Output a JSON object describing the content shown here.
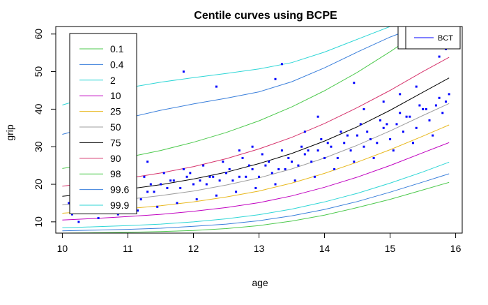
{
  "chart_data": {
    "type": "scatter",
    "title": "Centile curves using BCPE",
    "xlabel": "age",
    "ylabel": "grip",
    "xlim": [
      9.9,
      16.1
    ],
    "ylim": [
      7,
      62
    ],
    "x_ticks": [
      10,
      11,
      12,
      13,
      14,
      15,
      16
    ],
    "y_ticks": [
      10,
      20,
      30,
      40,
      50,
      60
    ],
    "legend_title": "",
    "legend_position": "top-left",
    "legend_entries": [
      "0.1",
      "0.4",
      "2",
      "10",
      "25",
      "50",
      "75",
      "90",
      "98",
      "99.6",
      "99.9"
    ],
    "second_legend": {
      "position": "top-right",
      "entries": [
        "BCT"
      ],
      "color": "#0000FF"
    },
    "point_color": "#0000FF",
    "curve_x": [
      10,
      10.5,
      11,
      11.5,
      12,
      12.5,
      13,
      13.5,
      14,
      14.5,
      15,
      15.5,
      15.9
    ],
    "series": [
      {
        "centile": "0.1",
        "color": "#4DC94D",
        "values": [
          7.0,
          7.1,
          7.2,
          7.4,
          7.7,
          8.2,
          9.0,
          10.2,
          11.8,
          13.8,
          16.0,
          18.5,
          20.5
        ]
      },
      {
        "centile": "0.4",
        "color": "#3A7FDB",
        "values": [
          7.6,
          7.8,
          8.0,
          8.3,
          8.8,
          9.4,
          10.3,
          11.6,
          13.3,
          15.4,
          17.9,
          20.6,
          22.8
        ]
      },
      {
        "centile": "2",
        "color": "#2ED6D6",
        "values": [
          8.4,
          8.7,
          9.0,
          9.4,
          10.0,
          10.8,
          11.9,
          13.4,
          15.3,
          17.6,
          20.3,
          23.3,
          25.9
        ]
      },
      {
        "centile": "10",
        "color": "#C000C0",
        "values": [
          10.5,
          10.9,
          11.4,
          12.0,
          12.8,
          13.8,
          15.1,
          16.9,
          19.2,
          21.9,
          25.0,
          28.4,
          31.1
        ]
      },
      {
        "centile": "25",
        "color": "#E8B81E",
        "values": [
          12.3,
          12.9,
          13.5,
          14.3,
          15.3,
          16.6,
          18.2,
          20.3,
          22.9,
          25.9,
          29.2,
          32.8,
          35.8
        ]
      },
      {
        "centile": "50",
        "color": "#9E9E9E",
        "values": [
          14.5,
          15.2,
          16.0,
          17.0,
          18.2,
          19.8,
          21.7,
          24.1,
          27.0,
          30.4,
          34.2,
          38.3,
          41.5
        ]
      },
      {
        "centile": "75",
        "color": "#000000",
        "values": [
          16.8,
          17.7,
          18.7,
          19.9,
          21.4,
          23.2,
          25.5,
          28.2,
          31.5,
          35.3,
          39.7,
          44.5,
          48.3
        ]
      },
      {
        "centile": "90",
        "color": "#D6336C",
        "values": [
          19.5,
          20.5,
          21.6,
          23.0,
          24.7,
          26.8,
          29.4,
          32.5,
          36.2,
          40.4,
          45.0,
          50.0,
          53.8
        ]
      },
      {
        "centile": "98",
        "color": "#4DC94D",
        "values": [
          24.2,
          25.6,
          27.2,
          29.0,
          31.2,
          33.8,
          36.9,
          40.6,
          44.9,
          49.8,
          55.3,
          61.2,
          62.5
        ]
      },
      {
        "centile": "99.6",
        "color": "#3A7FDB",
        "values": [
          33.3,
          35.6,
          37.7,
          39.7,
          41.4,
          42.9,
          44.6,
          47.3,
          51.0,
          55.2,
          59.2,
          62.5,
          62.5
        ]
      },
      {
        "centile": "99.9",
        "color": "#2ED6D6",
        "values": [
          41.1,
          43.7,
          45.7,
          47.2,
          48.4,
          49.5,
          50.7,
          52.4,
          55.2,
          58.6,
          62.0,
          62.5,
          62.5
        ]
      }
    ],
    "points_x": [
      10.1,
      10.3,
      10.5,
      10.7,
      10.9,
      11.1,
      11.3,
      11.5,
      11.7,
      11.9,
      12.1,
      12.3,
      12.5,
      12.7,
      12.9,
      13.1,
      13.3,
      13.5,
      13.7,
      13.9,
      14.1,
      14.3,
      14.5,
      14.7,
      14.9,
      15.1,
      15.3,
      15.5,
      15.7,
      15.9,
      10.2,
      10.4,
      10.6,
      10.8,
      11.0,
      11.2,
      11.4,
      11.6,
      11.8,
      12.0,
      12.2,
      12.4,
      12.6,
      12.8,
      13.0,
      13.2,
      13.4,
      13.6,
      13.8,
      14.0,
      14.2,
      14.4,
      14.6,
      14.8,
      15.0,
      15.2,
      15.4,
      15.6,
      15.8,
      10.15,
      10.45,
      10.75,
      11.05,
      11.35,
      11.65,
      11.95,
      12.25,
      12.55,
      12.85,
      13.15,
      13.45,
      13.75,
      14.05,
      14.35,
      14.65,
      14.95,
      15.25,
      15.55,
      15.85,
      10.35,
      10.65,
      10.95,
      11.25,
      11.55,
      11.85,
      12.15,
      12.45,
      12.75,
      13.05,
      13.35,
      13.65,
      13.95,
      14.25,
      14.55,
      14.85,
      15.15,
      15.45,
      15.75,
      10.25,
      10.55,
      10.85,
      11.15,
      11.45,
      11.75,
      12.05,
      12.35,
      12.65,
      12.95,
      13.25,
      13.55,
      13.85,
      14.15,
      14.45,
      14.75,
      15.05,
      15.35,
      15.65,
      11.85,
      12.35,
      13.25,
      13.35,
      14.45,
      15.15,
      15.55,
      15.75,
      15.85,
      12.9,
      13.9,
      14.9,
      11.3,
      12.7,
      13.7,
      14.6,
      15.4
    ],
    "points_y": [
      15,
      17,
      16,
      18,
      17,
      19,
      18,
      20,
      21,
      22,
      21,
      22,
      23,
      22,
      24,
      25,
      24,
      26,
      28,
      29,
      30,
      31,
      33,
      32,
      35,
      36,
      38,
      40,
      41,
      44,
      13,
      14,
      15,
      16,
      17,
      16,
      18,
      19,
      19,
      20,
      20,
      21,
      21,
      22,
      22,
      23,
      24,
      25,
      26,
      27,
      27,
      29,
      30,
      31,
      32,
      34,
      35,
      37,
      39,
      12,
      16,
      17,
      18,
      20,
      21,
      23,
      22,
      24,
      25,
      26,
      27,
      29,
      31,
      33,
      34,
      36,
      38,
      40,
      42,
      20,
      20,
      21,
      22,
      23,
      24,
      25,
      26,
      27,
      28,
      29,
      30,
      32,
      34,
      36,
      37,
      39,
      41,
      43,
      10,
      11,
      12,
      13,
      14,
      15,
      16,
      17,
      18,
      19,
      20,
      21,
      22,
      24,
      26,
      27,
      29,
      31,
      33,
      50,
      46,
      48,
      52,
      47,
      44,
      57,
      54,
      56,
      30,
      38,
      42,
      26,
      29,
      34,
      40,
      46
    ]
  }
}
